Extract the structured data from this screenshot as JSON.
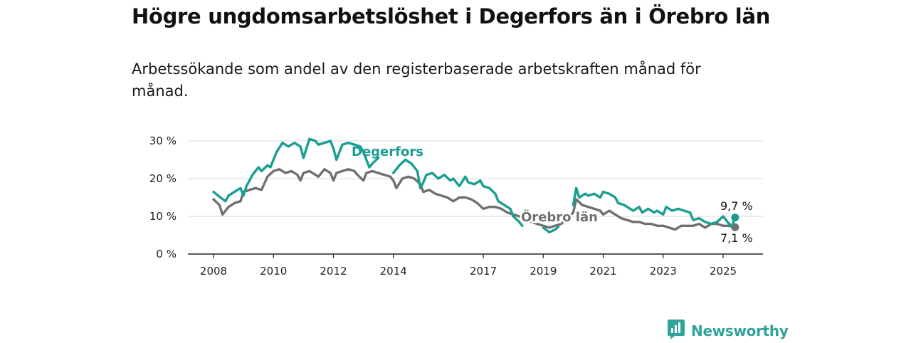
{
  "title": "Högre ungdomsarbetslöshet i Degerfors än i Örebro län",
  "subtitle": "Arbetssökande som andel av den registerbaserade arbetskraften månad för månad.",
  "brand": {
    "name": "Newsworthy",
    "icon": "newsworthy-logo-icon"
  },
  "colors": {
    "degerfors": "#1a9e91",
    "orebro": "#707070",
    "grid": "#d9d9d9",
    "axis": "#222222"
  },
  "chart_data": {
    "type": "line",
    "title": "Högre ungdomsarbetslöshet i Degerfors än i Örebro län",
    "subtitle": "Arbetssökande som andel av den registerbaserade arbetskraften månad för månad.",
    "xlabel": "",
    "ylabel": "",
    "xlim": [
      2008.0,
      2025.9
    ],
    "ylim": [
      0,
      30
    ],
    "y_ticks": [
      0,
      10,
      20,
      30
    ],
    "y_tick_labels": [
      "0 %",
      "10 %",
      "20 %",
      "30 %"
    ],
    "x_ticks": [
      2008,
      2010,
      2012,
      2014,
      2017,
      2019,
      2021,
      2023,
      2025
    ],
    "x_tick_labels": [
      "2008",
      "2010",
      "2012",
      "2014",
      "2017",
      "2019",
      "2021",
      "2023",
      "2025"
    ],
    "grid": true,
    "legend": "inline labels",
    "series": [
      {
        "name": "Degerfors",
        "end_label": "9,7 %",
        "points": [
          [
            2008.0,
            16.5
          ],
          [
            2008.2,
            15.2
          ],
          [
            2008.4,
            14.0
          ],
          [
            2008.5,
            15.5
          ],
          [
            2008.7,
            16.5
          ],
          [
            2008.9,
            17.5
          ],
          [
            2009.0,
            15.5
          ],
          [
            2009.1,
            18.0
          ],
          [
            2009.3,
            21.0
          ],
          [
            2009.5,
            23.0
          ],
          [
            2009.6,
            22.0
          ],
          [
            2009.8,
            23.5
          ],
          [
            2009.9,
            23.0
          ],
          [
            2010.1,
            27.0
          ],
          [
            2010.3,
            29.5
          ],
          [
            2010.5,
            28.5
          ],
          [
            2010.7,
            29.5
          ],
          [
            2010.9,
            28.5
          ],
          [
            2011.0,
            25.5
          ],
          [
            2011.2,
            30.5
          ],
          [
            2011.4,
            30.0
          ],
          [
            2011.5,
            29.0
          ],
          [
            2011.7,
            29.5
          ],
          [
            2011.9,
            30.0
          ],
          [
            2012.0,
            28.0
          ],
          [
            2012.1,
            25.0
          ],
          [
            2012.3,
            29.0
          ],
          [
            2012.5,
            29.5
          ],
          [
            2012.7,
            29.0
          ],
          [
            2012.9,
            28.5
          ],
          [
            2013.0,
            27.0
          ],
          [
            2013.2,
            23.0
          ],
          [
            2013.3,
            24.0
          ],
          [
            2013.5,
            25.5
          ],
          [
            2013.7,
            null
          ],
          [
            2014.0,
            21.5
          ],
          [
            2014.2,
            23.5
          ],
          [
            2014.4,
            25.0
          ],
          [
            2014.6,
            24.0
          ],
          [
            2014.8,
            22.0
          ],
          [
            2014.9,
            17.5
          ],
          [
            2015.0,
            19.0
          ],
          [
            2015.1,
            21.0
          ],
          [
            2015.3,
            21.5
          ],
          [
            2015.5,
            20.0
          ],
          [
            2015.7,
            21.0
          ],
          [
            2015.9,
            19.5
          ],
          [
            2016.0,
            20.0
          ],
          [
            2016.2,
            18.0
          ],
          [
            2016.4,
            20.5
          ],
          [
            2016.5,
            19.0
          ],
          [
            2016.7,
            18.5
          ],
          [
            2016.9,
            19.5
          ],
          [
            2017.0,
            18.0
          ],
          [
            2017.2,
            17.5
          ],
          [
            2017.4,
            16.0
          ],
          [
            2017.5,
            14.0
          ],
          [
            2017.7,
            13.0
          ],
          [
            2017.9,
            12.0
          ],
          [
            2018.0,
            10.0
          ],
          [
            2018.2,
            8.5
          ],
          [
            2018.3,
            7.5
          ],
          [
            2018.5,
            null
          ],
          [
            2019.0,
            7.0
          ],
          [
            2019.2,
            5.8
          ],
          [
            2019.4,
            6.5
          ],
          [
            2019.5,
            7.2
          ],
          [
            2019.6,
            null
          ],
          [
            2020.0,
            13.0
          ],
          [
            2020.1,
            17.5
          ],
          [
            2020.2,
            15.0
          ],
          [
            2020.4,
            16.0
          ],
          [
            2020.5,
            15.5
          ],
          [
            2020.7,
            16.0
          ],
          [
            2020.9,
            15.0
          ],
          [
            2021.0,
            16.5
          ],
          [
            2021.2,
            16.0
          ],
          [
            2021.4,
            15.0
          ],
          [
            2021.5,
            13.5
          ],
          [
            2021.7,
            13.0
          ],
          [
            2021.9,
            12.0
          ],
          [
            2022.0,
            11.5
          ],
          [
            2022.2,
            12.5
          ],
          [
            2022.3,
            11.0
          ],
          [
            2022.5,
            12.0
          ],
          [
            2022.7,
            11.0
          ],
          [
            2022.8,
            11.5
          ],
          [
            2023.0,
            10.5
          ],
          [
            2023.1,
            12.5
          ],
          [
            2023.3,
            11.5
          ],
          [
            2023.5,
            12.0
          ],
          [
            2023.7,
            11.5
          ],
          [
            2023.9,
            11.0
          ],
          [
            2024.0,
            9.0
          ],
          [
            2024.2,
            9.5
          ],
          [
            2024.4,
            8.5
          ],
          [
            2024.6,
            8.0
          ],
          [
            2024.8,
            8.5
          ],
          [
            2025.0,
            10.0
          ],
          [
            2025.2,
            8.0
          ],
          [
            2025.3,
            7.5
          ],
          [
            2025.4,
            9.7
          ]
        ]
      },
      {
        "name": "Örebro län",
        "end_label": "7,1 %",
        "points": [
          [
            2008.0,
            14.5
          ],
          [
            2008.2,
            13.0
          ],
          [
            2008.3,
            10.5
          ],
          [
            2008.5,
            12.5
          ],
          [
            2008.7,
            13.5
          ],
          [
            2008.9,
            14.0
          ],
          [
            2009.0,
            16.5
          ],
          [
            2009.2,
            17.0
          ],
          [
            2009.4,
            17.5
          ],
          [
            2009.6,
            17.0
          ],
          [
            2009.8,
            20.5
          ],
          [
            2010.0,
            22.0
          ],
          [
            2010.2,
            22.5
          ],
          [
            2010.4,
            21.5
          ],
          [
            2010.6,
            22.0
          ],
          [
            2010.8,
            21.0
          ],
          [
            2010.9,
            19.5
          ],
          [
            2011.0,
            21.5
          ],
          [
            2011.2,
            22.0
          ],
          [
            2011.4,
            21.0
          ],
          [
            2011.5,
            20.5
          ],
          [
            2011.7,
            22.5
          ],
          [
            2011.9,
            21.5
          ],
          [
            2012.0,
            19.5
          ],
          [
            2012.1,
            21.5
          ],
          [
            2012.3,
            22.0
          ],
          [
            2012.5,
            22.5
          ],
          [
            2012.7,
            22.0
          ],
          [
            2012.8,
            21.0
          ],
          [
            2013.0,
            19.5
          ],
          [
            2013.1,
            21.5
          ],
          [
            2013.3,
            22.0
          ],
          [
            2013.5,
            21.5
          ],
          [
            2013.7,
            21.0
          ],
          [
            2013.9,
            20.5
          ],
          [
            2014.0,
            19.5
          ],
          [
            2014.1,
            17.5
          ],
          [
            2014.3,
            20.0
          ],
          [
            2014.5,
            20.5
          ],
          [
            2014.7,
            20.0
          ],
          [
            2014.9,
            18.5
          ],
          [
            2015.0,
            16.5
          ],
          [
            2015.2,
            17.0
          ],
          [
            2015.4,
            16.0
          ],
          [
            2015.6,
            15.5
          ],
          [
            2015.8,
            15.0
          ],
          [
            2016.0,
            14.0
          ],
          [
            2016.2,
            15.0
          ],
          [
            2016.4,
            15.0
          ],
          [
            2016.6,
            14.5
          ],
          [
            2016.8,
            13.5
          ],
          [
            2017.0,
            12.0
          ],
          [
            2017.2,
            12.5
          ],
          [
            2017.4,
            12.5
          ],
          [
            2017.6,
            12.0
          ],
          [
            2017.8,
            11.0
          ],
          [
            2018.0,
            10.5
          ],
          [
            2018.2,
            10.0
          ],
          [
            2018.4,
            9.0
          ],
          [
            2018.6,
            8.5
          ],
          [
            2018.8,
            8.0
          ],
          [
            2019.0,
            7.5
          ],
          [
            2019.2,
            7.0
          ],
          [
            2019.4,
            7.5
          ],
          [
            2019.6,
            8.0
          ],
          [
            2019.8,
            9.5
          ],
          [
            2020.0,
            11.0
          ],
          [
            2020.1,
            14.5
          ],
          [
            2020.3,
            13.0
          ],
          [
            2020.5,
            12.5
          ],
          [
            2020.7,
            12.0
          ],
          [
            2020.9,
            11.5
          ],
          [
            2021.0,
            10.5
          ],
          [
            2021.2,
            11.5
          ],
          [
            2021.4,
            10.5
          ],
          [
            2021.6,
            9.5
          ],
          [
            2021.8,
            9.0
          ],
          [
            2022.0,
            8.5
          ],
          [
            2022.2,
            8.5
          ],
          [
            2022.4,
            8.0
          ],
          [
            2022.6,
            8.0
          ],
          [
            2022.8,
            7.5
          ],
          [
            2023.0,
            7.5
          ],
          [
            2023.2,
            7.0
          ],
          [
            2023.4,
            6.5
          ],
          [
            2023.6,
            7.5
          ],
          [
            2023.8,
            7.5
          ],
          [
            2024.0,
            7.5
          ],
          [
            2024.2,
            8.0
          ],
          [
            2024.4,
            7.0
          ],
          [
            2024.6,
            8.0
          ],
          [
            2024.8,
            8.0
          ],
          [
            2025.0,
            7.5
          ],
          [
            2025.2,
            7.5
          ],
          [
            2025.4,
            7.1
          ]
        ]
      }
    ]
  }
}
